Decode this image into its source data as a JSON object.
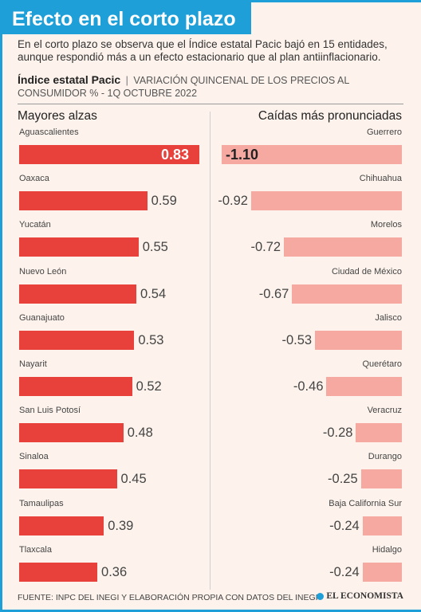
{
  "header": {
    "title": "Efecto en el corto plazo",
    "subtitle": "En el corto plazo se observa que el Índice estatal Pacic bajó en 15 entidades, aunque respondió más a un efecto estacionario que al plan antiinflacionario.",
    "index_name": "Índice estatal Pacic",
    "index_separator": "|",
    "index_desc": "VARIACIÓN QUINCENAL DE LOS PRECIOS AL CONSUMIDOR % - 1Q OCTUBRE 2022"
  },
  "colors": {
    "accent": "#1f9fd8",
    "rise_bar": "#e8413c",
    "fall_bar": "#f5a9a1"
  },
  "chart_data": [
    {
      "type": "bar",
      "title": "Mayores alzas",
      "categories": [
        "Aguascalientes",
        "Oaxaca",
        "Yucatán",
        "Nuevo León",
        "Guanajuato",
        "Nayarit",
        "San Luis Potosí",
        "Sinaloa",
        "Tamaulipas",
        "Tlaxcala"
      ],
      "values": [
        0.83,
        0.59,
        0.55,
        0.54,
        0.53,
        0.52,
        0.48,
        0.45,
        0.39,
        0.36
      ],
      "value_labels": [
        "0.83",
        "0.59",
        "0.55",
        "0.54",
        "0.53",
        "0.52",
        "0.48",
        "0.45",
        "0.39",
        "0.36"
      ],
      "xlabel": "",
      "ylabel": ""
    },
    {
      "type": "bar",
      "title": "Caídas más pronunciadas",
      "categories": [
        "Guerrero",
        "Chihuahua",
        "Morelos",
        "Ciudad de México",
        "Jalisco",
        "Querétaro",
        "Veracruz",
        "Durango",
        "Baja California Sur",
        "Hidalgo"
      ],
      "values": [
        -1.1,
        -0.92,
        -0.72,
        -0.67,
        -0.53,
        -0.46,
        -0.28,
        -0.25,
        -0.24,
        -0.24
      ],
      "value_labels": [
        "-1.10",
        "-0.92",
        "-0.72",
        "-0.67",
        "-0.53",
        "-0.46",
        "-0.28",
        "-0.25",
        "-0.24",
        "-0.24"
      ],
      "xlabel": "",
      "ylabel": ""
    }
  ],
  "footer": {
    "source": "FUENTE: INPC DEL INEGI Y ELABORACIÓN PROPIA CON DATOS DEL INEGI",
    "brand": "EL ECONOMISTA"
  }
}
